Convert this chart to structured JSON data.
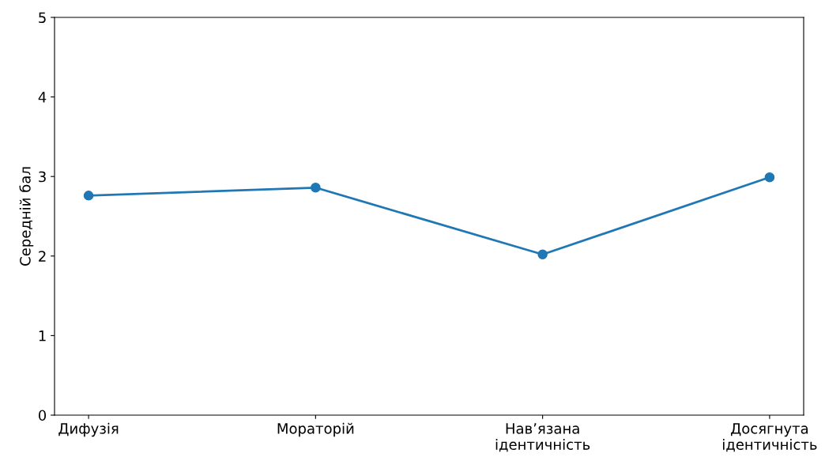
{
  "chart_data": {
    "type": "line",
    "ylabel": "Середній бал",
    "categories": [
      "Дифузія",
      "Мораторій",
      "Нав’язана\nідентичність",
      "Досягнута\nідентичність"
    ],
    "series": [
      {
        "color": "#1f77b4",
        "values": [
          2.76,
          2.86,
          2.02,
          2.99
        ]
      }
    ],
    "ylim": [
      0,
      5
    ],
    "yticks": [
      0,
      1,
      2,
      3,
      4,
      5
    ],
    "marker": "circle",
    "line_style": "solid",
    "grid": false,
    "legend": false
  }
}
